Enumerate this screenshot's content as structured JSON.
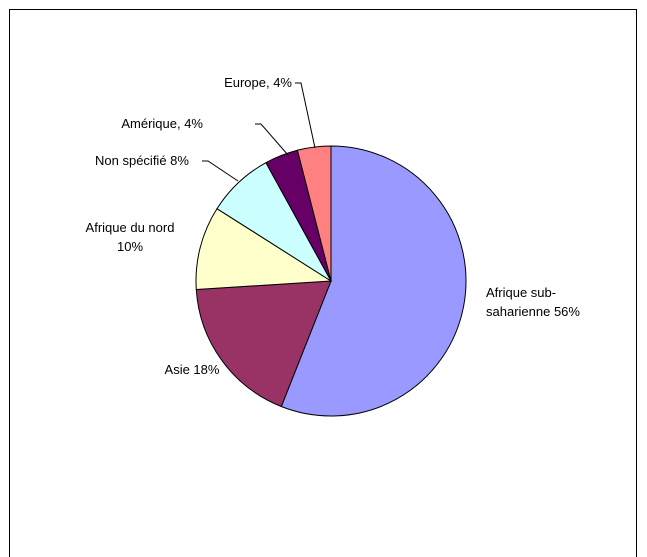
{
  "chart_data": {
    "type": "pie",
    "title": "",
    "legend": "none",
    "slices": [
      {
        "label": "Afrique sub-saharienne 56%",
        "label_lines": [
          "Afrique sub-",
          "saharienne 56%"
        ],
        "value": 56,
        "color": "#9999FF"
      },
      {
        "label": "Asie 18%",
        "label_lines": [
          "Asie 18%"
        ],
        "value": 18,
        "color": "#993366"
      },
      {
        "label": "Afrique du nord 10%",
        "label_lines": [
          "Afrique du nord",
          "10%"
        ],
        "value": 10,
        "color": "#FFFFCC"
      },
      {
        "label": "Non spécifié 8%",
        "label_lines": [
          "Non spécifié 8%"
        ],
        "value": 8,
        "color": "#CCFFFF"
      },
      {
        "label": "Amérique, 4%",
        "label_lines": [
          "Amérique, 4%"
        ],
        "value": 4,
        "color": "#660066"
      },
      {
        "label": "Europe, 4%",
        "label_lines": [
          "Europe, 4%"
        ],
        "value": 4,
        "color": "#FF8080"
      }
    ]
  }
}
